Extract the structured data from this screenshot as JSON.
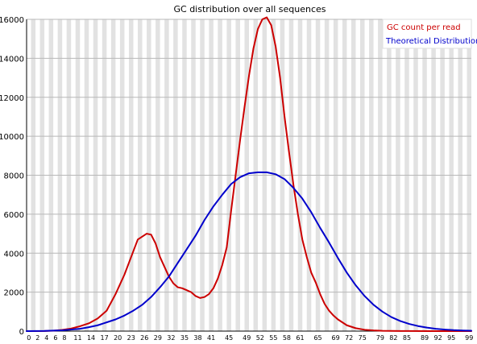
{
  "chart_data": {
    "type": "line",
    "title": "GC distribution over all sequences",
    "xlabel": "",
    "ylabel": "",
    "xlim": [
      0,
      100
    ],
    "ylim": [
      0,
      16000
    ],
    "yticks": [
      0,
      2000,
      4000,
      6000,
      8000,
      10000,
      12000,
      14000,
      16000
    ],
    "xtick_labels": [
      {
        "x": 0,
        "label": "0"
      },
      {
        "x": 2,
        "label": "2"
      },
      {
        "x": 4,
        "label": "4"
      },
      {
        "x": 6,
        "label": "6"
      },
      {
        "x": 8,
        "label": "8"
      },
      {
        "x": 11,
        "label": "11"
      },
      {
        "x": 14,
        "label": "14"
      },
      {
        "x": 17,
        "label": "17"
      },
      {
        "x": 20,
        "label": "20"
      },
      {
        "x": 23,
        "label": "23"
      },
      {
        "x": 26,
        "label": "26"
      },
      {
        "x": 29,
        "label": "29"
      },
      {
        "x": 32,
        "label": "32"
      },
      {
        "x": 35,
        "label": "35"
      },
      {
        "x": 38,
        "label": "38"
      },
      {
        "x": 41,
        "label": "41"
      },
      {
        "x": 45,
        "label": "45"
      },
      {
        "x": 49,
        "label": "49"
      },
      {
        "x": 52,
        "label": "52"
      },
      {
        "x": 55,
        "label": "55"
      },
      {
        "x": 58,
        "label": "58"
      },
      {
        "x": 61,
        "label": "61"
      },
      {
        "x": 65,
        "label": "65"
      },
      {
        "x": 69,
        "label": "69"
      },
      {
        "x": 72,
        "label": "72"
      },
      {
        "x": 75,
        "label": "75"
      },
      {
        "x": 79,
        "label": "79"
      },
      {
        "x": 82,
        "label": "82"
      },
      {
        "x": 85,
        "label": "85"
      },
      {
        "x": 89,
        "label": "89"
      },
      {
        "x": 92,
        "label": "92"
      },
      {
        "x": 95,
        "label": "95"
      },
      {
        "x": 99,
        "label": "99"
      }
    ],
    "grid": true,
    "legend_placement": "top-right",
    "series": [
      {
        "name": "GC count per read",
        "color": "#cc0000",
        "points": [
          [
            0,
            0
          ],
          [
            4,
            5
          ],
          [
            6,
            20
          ],
          [
            8,
            60
          ],
          [
            10,
            130
          ],
          [
            12,
            250
          ],
          [
            14,
            400
          ],
          [
            16,
            650
          ],
          [
            18,
            1050
          ],
          [
            20,
            1900
          ],
          [
            22,
            2900
          ],
          [
            24,
            4100
          ],
          [
            25,
            4700
          ],
          [
            26,
            4850
          ],
          [
            27,
            5000
          ],
          [
            28,
            4950
          ],
          [
            29,
            4500
          ],
          [
            30,
            3800
          ],
          [
            31,
            3300
          ],
          [
            32,
            2800
          ],
          [
            33,
            2450
          ],
          [
            34,
            2250
          ],
          [
            35,
            2200
          ],
          [
            36,
            2100
          ],
          [
            37,
            2000
          ],
          [
            38,
            1800
          ],
          [
            39,
            1700
          ],
          [
            40,
            1750
          ],
          [
            41,
            1900
          ],
          [
            42,
            2200
          ],
          [
            43,
            2700
          ],
          [
            44,
            3400
          ],
          [
            45,
            4300
          ],
          [
            46,
            6200
          ],
          [
            47,
            8000
          ],
          [
            48,
            9800
          ],
          [
            49,
            11500
          ],
          [
            50,
            13100
          ],
          [
            51,
            14500
          ],
          [
            52,
            15500
          ],
          [
            53,
            16000
          ],
          [
            54,
            16100
          ],
          [
            55,
            15700
          ],
          [
            56,
            14600
          ],
          [
            57,
            13000
          ],
          [
            58,
            11000
          ],
          [
            59,
            9200
          ],
          [
            60,
            7500
          ],
          [
            61,
            6000
          ],
          [
            62,
            4700
          ],
          [
            63,
            3800
          ],
          [
            64,
            3000
          ],
          [
            65,
            2500
          ],
          [
            66,
            1900
          ],
          [
            67,
            1400
          ],
          [
            68,
            1050
          ],
          [
            69,
            800
          ],
          [
            70,
            600
          ],
          [
            72,
            300
          ],
          [
            74,
            150
          ],
          [
            76,
            70
          ],
          [
            78,
            35
          ],
          [
            80,
            15
          ],
          [
            84,
            5
          ],
          [
            90,
            2
          ],
          [
            100,
            0
          ]
        ]
      },
      {
        "name": "Theoretical Distribution",
        "color": "#0000cc",
        "points": [
          [
            0,
            0
          ],
          [
            4,
            10
          ],
          [
            8,
            40
          ],
          [
            12,
            120
          ],
          [
            14,
            200
          ],
          [
            16,
            300
          ],
          [
            18,
            450
          ],
          [
            20,
            600
          ],
          [
            22,
            800
          ],
          [
            24,
            1050
          ],
          [
            26,
            1350
          ],
          [
            28,
            1750
          ],
          [
            30,
            2250
          ],
          [
            32,
            2800
          ],
          [
            34,
            3500
          ],
          [
            36,
            4200
          ],
          [
            38,
            4900
          ],
          [
            40,
            5700
          ],
          [
            42,
            6400
          ],
          [
            44,
            7000
          ],
          [
            46,
            7550
          ],
          [
            48,
            7900
          ],
          [
            50,
            8100
          ],
          [
            52,
            8150
          ],
          [
            54,
            8150
          ],
          [
            56,
            8050
          ],
          [
            58,
            7800
          ],
          [
            60,
            7350
          ],
          [
            62,
            6800
          ],
          [
            64,
            6100
          ],
          [
            66,
            5300
          ],
          [
            68,
            4550
          ],
          [
            70,
            3750
          ],
          [
            72,
            3000
          ],
          [
            74,
            2350
          ],
          [
            76,
            1800
          ],
          [
            78,
            1350
          ],
          [
            80,
            1000
          ],
          [
            82,
            720
          ],
          [
            84,
            520
          ],
          [
            86,
            370
          ],
          [
            88,
            260
          ],
          [
            90,
            180
          ],
          [
            92,
            120
          ],
          [
            94,
            80
          ],
          [
            96,
            50
          ],
          [
            98,
            30
          ],
          [
            100,
            20
          ]
        ]
      }
    ]
  }
}
